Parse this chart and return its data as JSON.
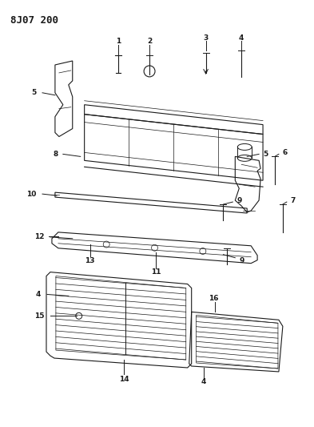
{
  "title": "8J07 200",
  "bg_color": "#ffffff",
  "line_color": "#1a1a1a",
  "label_fs": 6.5
}
